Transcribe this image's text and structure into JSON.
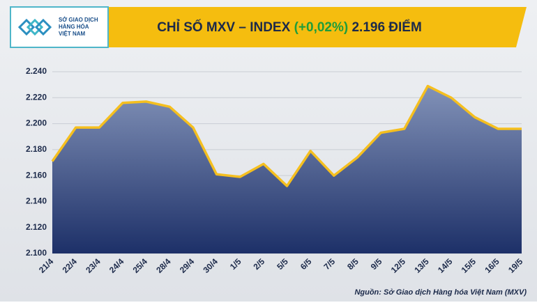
{
  "logo": {
    "line1": "SỞ GIAO DỊCH",
    "line2": "HÀNG HÓA",
    "line3": "VIỆT NAM"
  },
  "chart_data": {
    "type": "line",
    "title": {
      "name": "CHỈ SỐ MXV – INDEX",
      "change": "(+0,02%)",
      "level": "2.196 ĐIỂM"
    },
    "categories": [
      "21/4",
      "22/4",
      "23/4",
      "24/4",
      "25/4",
      "28/4",
      "29/4",
      "30/4",
      "1/5",
      "2/5",
      "5/5",
      "6/5",
      "7/5",
      "8/5",
      "9/5",
      "12/5",
      "13/5",
      "14/5",
      "15/5",
      "16/5",
      "19/5"
    ],
    "values": [
      2171,
      2197,
      2197,
      2216,
      2217,
      2213,
      2197,
      2161,
      2159,
      2169,
      2152,
      2179,
      2160,
      2174,
      2193,
      2196,
      2229,
      2220,
      2205,
      2196,
      2196
    ],
    "color": "#f5bf1f",
    "change_color": "#1f9d3a",
    "ylim": [
      2100,
      2240
    ],
    "yticks": [
      {
        "value": 2100,
        "label": "2.100"
      },
      {
        "value": 2120,
        "label": "2.120"
      },
      {
        "value": 2140,
        "label": "2.140"
      },
      {
        "value": 2160,
        "label": "2.160"
      },
      {
        "value": 2180,
        "label": "2.180"
      },
      {
        "value": 2200,
        "label": "2.200"
      },
      {
        "value": 2220,
        "label": "2.220"
      },
      {
        "value": 2240,
        "label": "2.240"
      }
    ],
    "grid": true,
    "source": "Nguồn: Sở Giao dịch Hàng hóa Việt Nam (MXV)"
  }
}
